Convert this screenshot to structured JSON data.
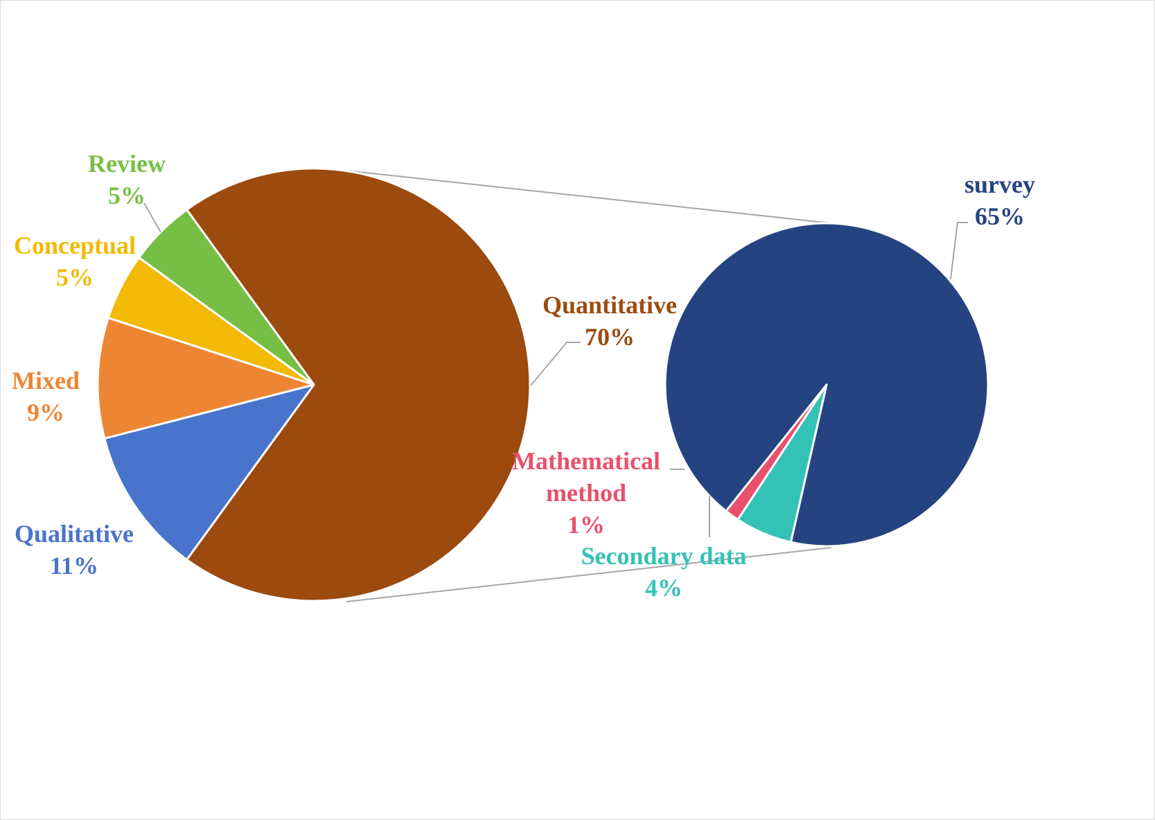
{
  "chart_data": {
    "type": "pie",
    "title": "",
    "main_pie": {
      "slices": [
        {
          "label": "Quantitative",
          "value": 70,
          "display": "70%",
          "color": "#9c4a0e"
        },
        {
          "label": "Qualitative",
          "value": 11,
          "display": "11%",
          "color": "#4874cb"
        },
        {
          "label": "Mixed",
          "value": 9,
          "display": "9%",
          "color": "#ee8533"
        },
        {
          "label": "Conceptual",
          "value": 5,
          "display": "5%",
          "color": "#f2ba05"
        },
        {
          "label": "Review",
          "value": 5,
          "display": "5%",
          "color": "#76bf44"
        }
      ]
    },
    "sub_pie": {
      "breaks_out": "Quantitative",
      "slices": [
        {
          "label": "survey",
          "value": 65,
          "display": "65%",
          "color": "#254381"
        },
        {
          "label": "Secondary data",
          "value": 4,
          "display": "4%",
          "color": "#33c2b5"
        },
        {
          "label": "Mathematical method",
          "value": 1,
          "display": "1%",
          "color": "#e8506b"
        }
      ]
    },
    "legend": "none",
    "grid": false
  }
}
